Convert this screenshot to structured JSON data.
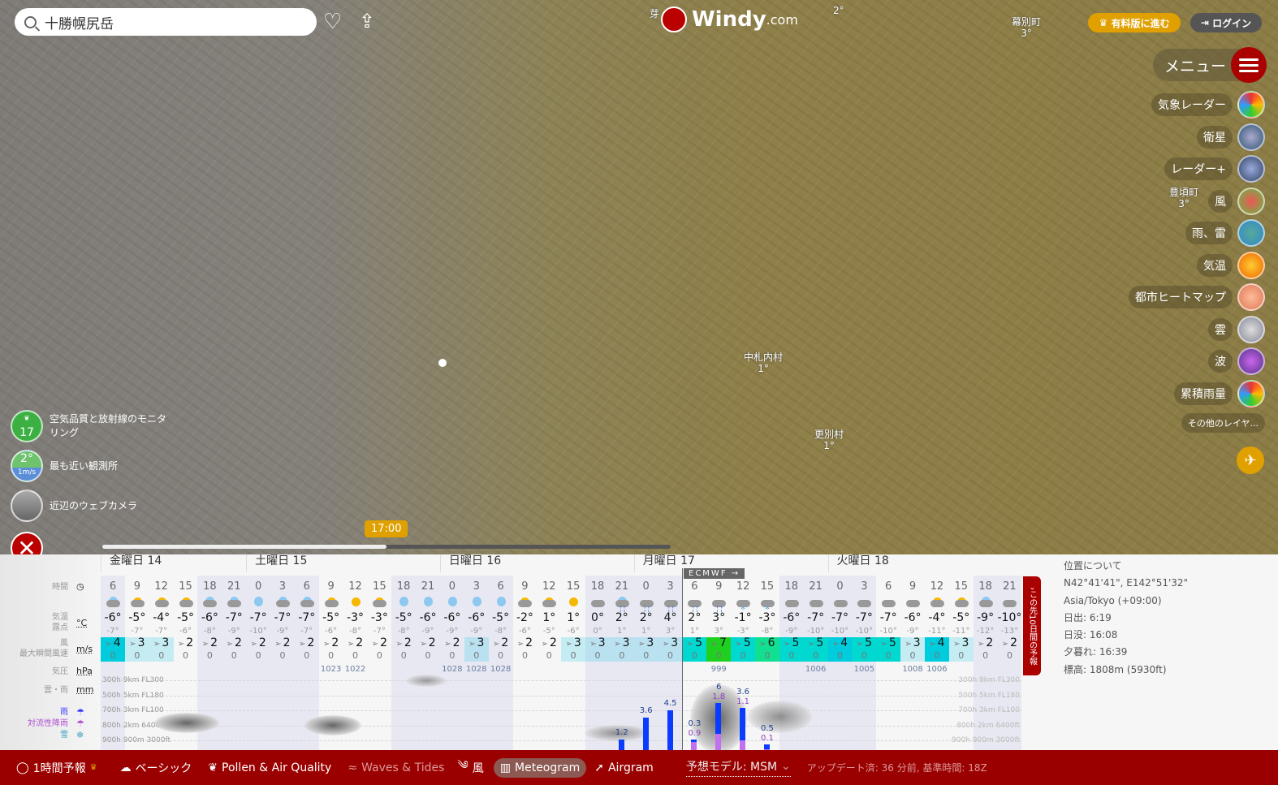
{
  "search": {
    "value": "十勝幌尻岳"
  },
  "header": {
    "logo": "Windy",
    "logo_suffix": ".com",
    "premium": "有料版に進む",
    "login": "ログイン",
    "menu": "メニュー"
  },
  "layers": [
    "気象レーダー",
    "衛星",
    "レーダー+",
    "風",
    "雨、雷",
    "気温",
    "都市ヒートマップ",
    "雲",
    "波",
    "累積雨量",
    "その他のレイヤ..."
  ],
  "map_labels": [
    {
      "name": "芽",
      "temp": ""
    },
    {
      "name": "",
      "temp": "2°"
    },
    {
      "name": "幕別町",
      "temp": "3°"
    },
    {
      "name": "豊頃町",
      "temp": "3°"
    },
    {
      "name": "中札内村",
      "temp": "1°"
    },
    {
      "name": "更別村",
      "temp": "1°"
    }
  ],
  "widgets": {
    "air_value": "17",
    "air_label": "空気品質と放射線のモニタリング",
    "station_temp": "2°",
    "station_wind": "1m/s",
    "station_label": "最も近い観測所",
    "webcam_label": "近辺のウェブカメラ"
  },
  "timeline": {
    "time": "17:00",
    "progress": 0.5
  },
  "meteogram": {
    "labels": {
      "time": "時間",
      "temp": "気温",
      "dew": "露点",
      "temp_unit": "°C",
      "wind": "風",
      "gust": "最大瞬間風速",
      "wind_unit": "m/s",
      "pressure": "気圧",
      "pressure_unit": "hPa",
      "cloud_rain": "雲・雨",
      "rain_unit": "mm",
      "rain": "雨",
      "convective": "対流性降雨",
      "snow": "雪"
    },
    "days": [
      "金曜日 14",
      "土曜日 15",
      "日曜日 16",
      "月曜日 17",
      "火曜日 18"
    ],
    "model_badge": "ECMWF →",
    "hours": [
      6,
      9,
      12,
      15,
      18,
      21,
      0,
      3,
      6,
      9,
      12,
      15,
      18,
      21,
      0,
      3,
      6,
      9,
      12,
      15,
      18,
      21,
      0,
      3,
      6,
      9,
      12,
      15,
      18,
      21,
      0,
      3,
      6,
      9,
      12,
      15,
      18,
      21
    ],
    "icons": [
      "moon-cloud",
      "sun-cloud",
      "sun-cloud",
      "sun-cloud",
      "moon-cloud",
      "moon-cloud",
      "moon",
      "moon-cloud",
      "moon-cloud",
      "sun-cloud",
      "sun",
      "sun-cloud",
      "moon",
      "moon",
      "moon",
      "moon",
      "moon",
      "sun-cloud",
      "sun-cloud",
      "sun",
      "cloud",
      "moon-rain",
      "rain",
      "rain",
      "rain",
      "rain",
      "snow",
      "snow",
      "cloud",
      "cloud",
      "cloud",
      "cloud",
      "cloud",
      "cloud",
      "sun-cloud",
      "sun-cloud",
      "moon-cloud",
      "cloud"
    ],
    "temps": [
      "-6°",
      "-5°",
      "-4°",
      "-5°",
      "-6°",
      "-7°",
      "-7°",
      "-7°",
      "-7°",
      "-5°",
      "-3°",
      "-3°",
      "-5°",
      "-6°",
      "-6°",
      "-6°",
      "-5°",
      "-2°",
      "1°",
      "1°",
      "0°",
      "2°",
      "2°",
      "4°",
      "2°",
      "3°",
      "-1°",
      "-3°",
      "-6°",
      "-7°",
      "-7°",
      "-7°",
      "-7°",
      "-6°",
      "-4°",
      "-5°",
      "-9°",
      "-10°"
    ],
    "dew": [
      "-7°",
      "-7°",
      "-7°",
      "-6°",
      "-8°",
      "-9°",
      "-10°",
      "-9°",
      "-7°",
      "-6°",
      "-8°",
      "-7°",
      "-8°",
      "-9°",
      "-9°",
      "-9°",
      "-8°",
      "-6°",
      "-5°",
      "-6°",
      "0°",
      "1°",
      "1°",
      "3°",
      "1°",
      "3°",
      "-3°",
      "-8°",
      "-9°",
      "-10°",
      "-10°",
      "-10°",
      "-10°",
      "-9°",
      "-11°",
      "-11°",
      "-12°",
      "-13°"
    ],
    "wind": [
      4,
      3,
      3,
      2,
      2,
      2,
      2,
      2,
      2,
      2,
      2,
      2,
      2,
      2,
      2,
      3,
      2,
      2,
      2,
      3,
      3,
      3,
      3,
      3,
      5,
      7,
      5,
      6,
      5,
      5,
      4,
      5,
      5,
      3,
      4,
      3,
      2,
      2
    ],
    "gust": [
      0,
      0,
      0,
      0,
      0,
      0,
      0,
      0,
      0,
      0,
      0,
      0,
      0,
      0,
      0,
      0,
      0,
      0,
      0,
      0,
      0,
      0,
      0,
      0,
      0,
      0,
      0,
      0,
      0,
      0,
      0,
      0,
      0,
      0,
      0,
      0,
      0,
      0
    ],
    "pressure": {
      "9": "1023",
      "10": "1022",
      "14": "1028",
      "15": "1028",
      "16": "1028",
      "25": "999",
      "29": "1006",
      "31": "1005",
      "33": "1008",
      "34": "1006"
    },
    "levels": [
      "300h 9km FL300",
      "500h 5km FL180",
      "700h 3km FL100",
      "800h 2km 6400ft",
      "900h 900m 3000ft"
    ],
    "precip": [
      {
        "i": 21,
        "rain": "1.2",
        "conv": ""
      },
      {
        "i": 22,
        "rain": "3.6",
        "conv": ""
      },
      {
        "i": 23,
        "rain": "4.5",
        "conv": ""
      },
      {
        "i": 24,
        "rain": "0.3",
        "conv": "0.9"
      },
      {
        "i": 25,
        "rain": "6",
        "conv": "1.8"
      },
      {
        "i": 26,
        "rain": "3.6",
        "conv": "1.1"
      },
      {
        "i": 27,
        "rain": "0.5",
        "conv": "0.1"
      }
    ]
  },
  "next_forecast": "この先10日間の予報",
  "location": {
    "title": "位置について",
    "coords": "N42°41'41\", E142°51'32\"",
    "tz": "Asia/Tokyo (+09:00)",
    "sunrise": "日出: 6:19",
    "sunset": "日没: 16:08",
    "dusk": "夕暮れ: 16:39",
    "elevation": "標高: 1808m (5930ft)"
  },
  "bottom": {
    "hourly": "1時間予報",
    "basic": "ベーシック",
    "pollen": "Pollen & Air Quality",
    "waves": "Waves & Tides",
    "wind": "風",
    "meteogram": "Meteogram",
    "airgram": "Airgram",
    "model": "予想モデル: MSM",
    "update": "アップデート済: 36 分前, 基準時間: 18Z"
  },
  "colors": {
    "brand": "#9b0000",
    "premium": "#e0a100",
    "rain": "#0a3cff",
    "convective": "#c070f0"
  }
}
